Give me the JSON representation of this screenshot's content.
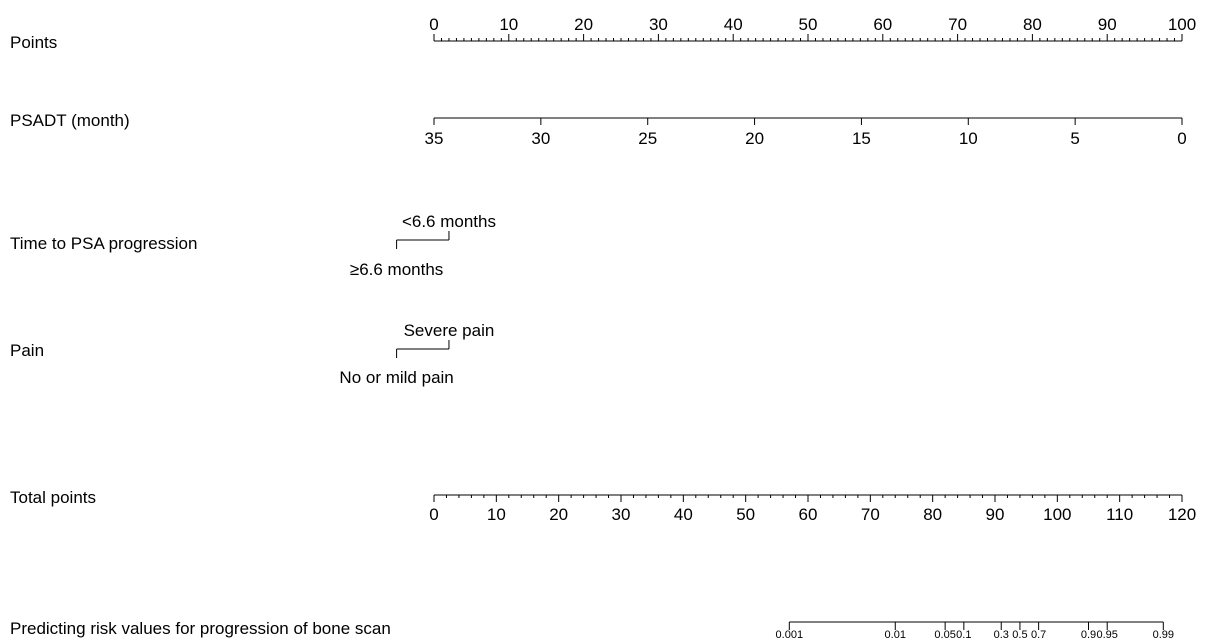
{
  "chart_data": {
    "type": "nomogram",
    "rows": [
      {
        "id": "points",
        "label": "Points",
        "range": [
          0,
          100
        ],
        "ticks": [
          "0",
          "10",
          "20",
          "30",
          "40",
          "50",
          "60",
          "70",
          "80",
          "90",
          "100"
        ],
        "minor_step": 1,
        "tick_labels_above": true
      },
      {
        "id": "psadt",
        "label": "PSADT (month)",
        "range": [
          35,
          0
        ],
        "ticks": [
          "35",
          "30",
          "25",
          "20",
          "15",
          "10",
          "5",
          "0"
        ],
        "tick_labels_above": false
      },
      {
        "id": "time_to_psa",
        "label": "Time to PSA progression",
        "levels": [
          {
            "label": "≥6.6 months",
            "points": -5
          },
          {
            "label": "<6.6 months",
            "points": 2
          }
        ]
      },
      {
        "id": "pain",
        "label": "Pain",
        "levels": [
          {
            "label": "No or mild pain",
            "points": -5
          },
          {
            "label": "Severe pain",
            "points": 2
          }
        ]
      },
      {
        "id": "total_points",
        "label": "Total points",
        "range": [
          0,
          120
        ],
        "ticks": [
          "0",
          "10",
          "20",
          "30",
          "40",
          "50",
          "60",
          "70",
          "80",
          "90",
          "100",
          "110",
          "120"
        ],
        "minor_step": 2,
        "tick_labels_above": false
      },
      {
        "id": "risk",
        "label": "Predicting risk values for progression of bone scan",
        "ticks": [
          "0.001",
          "0.01",
          "0.05",
          "0.1",
          "0.3",
          "0.5",
          "0.7",
          "0.9",
          "0.95",
          "0.99"
        ],
        "total_points_at_ticks": [
          57,
          74,
          82,
          85,
          91,
          94,
          97,
          105,
          108,
          117
        ]
      }
    ]
  }
}
